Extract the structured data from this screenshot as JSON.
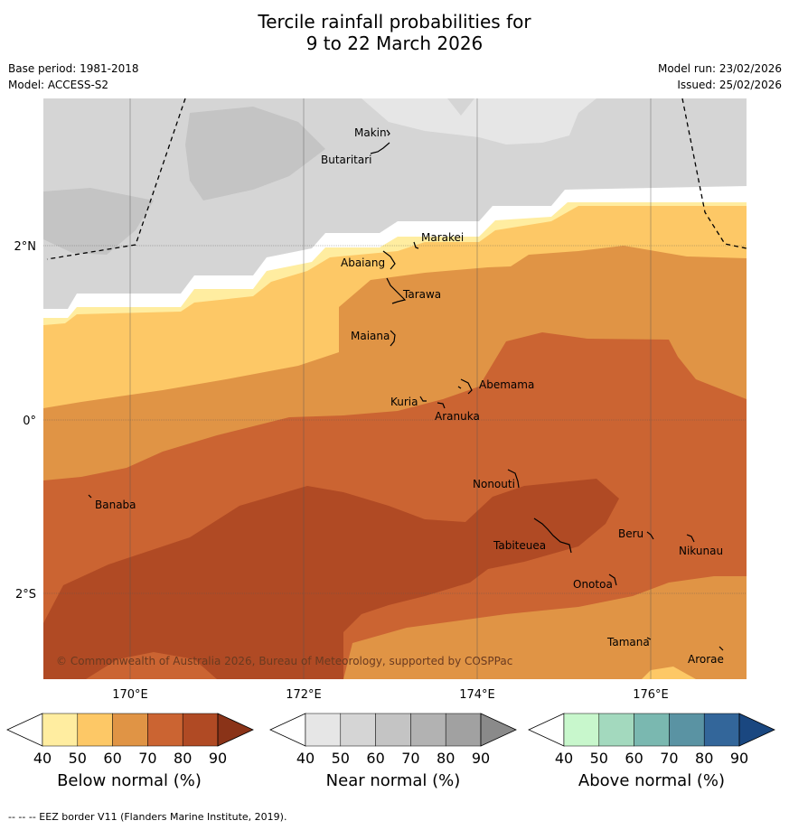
{
  "title": {
    "line1": "Tercile rainfall probabilities for",
    "line2": "9 to 22 March 2026"
  },
  "meta": {
    "base_period": "Base period: 1981-2018",
    "model": "Model: ACCESS-S2",
    "model_run": "Model run: 23/02/2026",
    "issued": "Issued: 25/02/2026"
  },
  "map": {
    "lat_labels": [
      "2°N",
      "0°",
      "2°S"
    ],
    "lon_labels": [
      "170°E",
      "172°E",
      "174°E",
      "176°E"
    ],
    "places": [
      "Makin",
      "Butaritari",
      "Marakei",
      "Abaiang",
      "Tarawa",
      "Maiana",
      "Abemama",
      "Kuria",
      "Aranuka",
      "Nonouti",
      "Banaba",
      "Tabiteuea",
      "Beru",
      "Nikunau",
      "Onotoa",
      "Tamana",
      "Arorae"
    ],
    "copyright": "© Commonwealth of Australia 2026, Bureau of Meteorology, supported by COSPPac"
  },
  "colorbars": [
    {
      "label": "Below normal (%)",
      "ticks": [
        "40",
        "50",
        "60",
        "70",
        "80",
        "90"
      ],
      "colors": [
        "#ffffff",
        "#ffeda0",
        "#fdc866",
        "#e09445",
        "#cb6432",
        "#b04a24",
        "#8a3318"
      ]
    },
    {
      "label": "Near normal (%)",
      "ticks": [
        "40",
        "50",
        "60",
        "70",
        "80",
        "90"
      ],
      "colors": [
        "#ffffff",
        "#e6e6e6",
        "#d5d5d5",
        "#c4c4c4",
        "#b2b2b2",
        "#a1a1a1",
        "#8a8a8a"
      ]
    },
    {
      "label": "Above normal (%)",
      "ticks": [
        "40",
        "50",
        "60",
        "70",
        "80",
        "90"
      ],
      "colors": [
        "#ffffff",
        "#c8f7cc",
        "#a3d9be",
        "#7ab8b0",
        "#5a93a3",
        "#33669a",
        "#1a4780"
      ]
    }
  ],
  "footer": "--  --  -- EEZ border V11 (Flanders Marine Institute, 2019)."
}
